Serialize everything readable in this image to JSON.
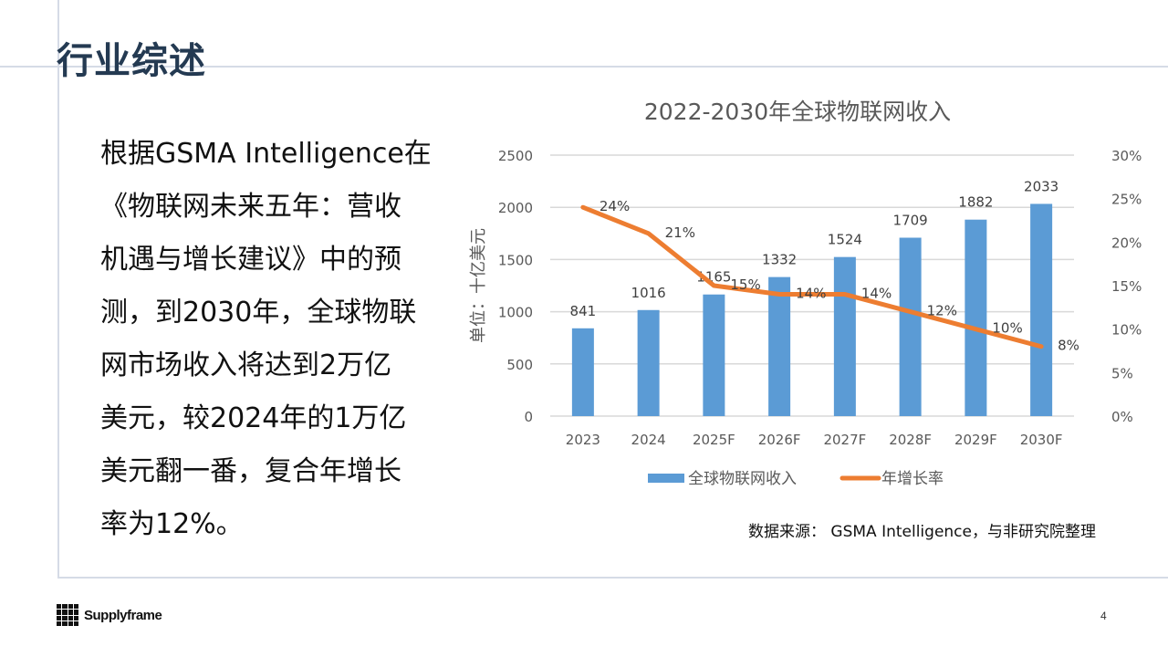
{
  "page": {
    "title": "行业综述",
    "page_number": "4",
    "logo_text": "Supplyframe",
    "body_lines": [
      "根据GSMA Intelligence在",
      "《物联网未来五年：营收",
      "机遇与增长建议》中的预",
      "测，到2030年，全球物联",
      "网市场收入将达到2万亿",
      "美元，较2024年的1万亿",
      "美元翻一番，复合年增长",
      "率为12%。"
    ],
    "source": "数据来源： GSMA Intelligence，与非研究院整理"
  },
  "colors": {
    "title": "#243a52",
    "bar": "#5b9bd5",
    "line": "#ed7d31",
    "grid": "#d9d9d9",
    "frame": "#d5dbe6"
  },
  "chart_data": {
    "type": "bar",
    "title": "2022-2030年全球物联网收入",
    "xlabel": "",
    "ylabel": "单位：十亿美元",
    "ylim": [
      0,
      2500
    ],
    "y_ticks": [
      "0",
      "500",
      "1000",
      "1500",
      "2000",
      "2500"
    ],
    "y2lim": [
      0,
      30
    ],
    "y2_ticks": [
      "0%",
      "5%",
      "10%",
      "15%",
      "20%",
      "25%",
      "30%"
    ],
    "grid": true,
    "legend_position": "bottom",
    "categories": [
      "2023",
      "2024",
      "2025F",
      "2026F",
      "2027F",
      "2028F",
      "2029F",
      "2030F"
    ],
    "series": [
      {
        "name": "全球物联网收入",
        "type": "bar",
        "axis": "left",
        "values": [
          841,
          1016,
          1165,
          1332,
          1524,
          1709,
          1882,
          2033
        ]
      },
      {
        "name": "年增长率",
        "type": "line",
        "axis": "right",
        "values": [
          24,
          21,
          15,
          14,
          14,
          12,
          10,
          8
        ],
        "labels": [
          "24%",
          "21%",
          "15%",
          "14%",
          "14%",
          "12%",
          "10%",
          "8%"
        ]
      }
    ]
  }
}
